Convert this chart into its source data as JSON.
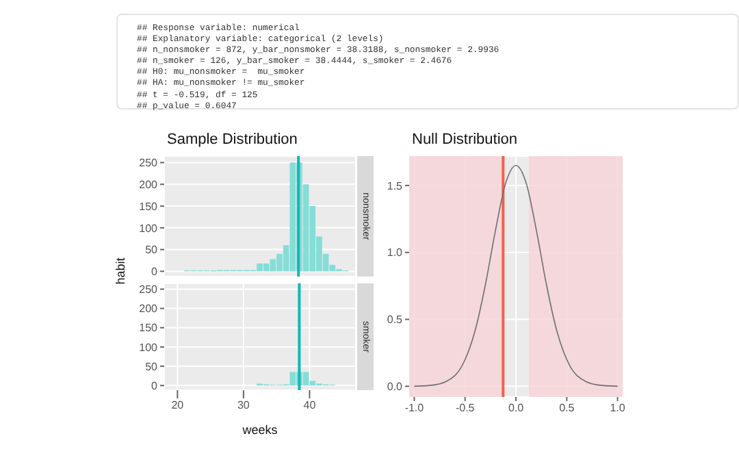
{
  "chart_data": [
    {
      "type": "other",
      "annotations": [
        "## Response variable: numerical",
        "## Explanatory variable: categorical (2 levels)",
        "## n_nonsmoker = 872, y_bar_nonsmoker = 38.3188, s_nonsmoker = 2.9936",
        "## n_smoker = 126, y_bar_smoker = 38.4444, s_smoker = 2.4676",
        "## H0: mu_nonsmoker =  mu_smoker",
        "## HA: mu_nonsmoker != mu_smoker",
        "## t = -0.519, df = 125",
        "## p_value = 0.6047"
      ]
    },
    {
      "type": "histogram",
      "title": "Sample Distribution",
      "ylabel": "habit",
      "annotations": [
        "nonsmoker"
      ],
      "color": "#85ddd7",
      "bins": [
        20,
        21,
        22,
        23,
        24,
        25,
        26,
        27,
        28,
        29,
        30,
        31,
        32,
        33,
        34,
        35,
        36,
        37,
        38,
        39,
        40,
        41,
        42,
        43,
        44,
        45,
        46
      ],
      "values": [
        null,
        2,
        2,
        2,
        2,
        2,
        3,
        3,
        3,
        3,
        3,
        3,
        18,
        18,
        28,
        40,
        60,
        250,
        250,
        200,
        150,
        80,
        40,
        15,
        5,
        2
      ],
      "xlim": [
        18,
        47
      ],
      "ylim": [
        -12,
        265
      ],
      "yticks": [
        0,
        50,
        100,
        150,
        200,
        250
      ],
      "grid": true,
      "tick_labels": "y",
      "ref_lines": [
        {
          "axis": "x",
          "value": 38.3188,
          "color": "#11b8b4"
        }
      ]
    },
    {
      "type": "histogram",
      "xlabel": "weeks",
      "annotations": [
        "smoker"
      ],
      "color": "#85ddd7",
      "bins": [
        20,
        21,
        22,
        23,
        24,
        25,
        26,
        27,
        28,
        29,
        30,
        31,
        32,
        33,
        34,
        35,
        36,
        37,
        38,
        39,
        40,
        41,
        42,
        43,
        44,
        45,
        46
      ],
      "values": [
        0,
        0,
        0,
        0,
        0,
        0,
        0,
        0,
        0,
        0,
        0,
        0,
        5,
        3,
        2,
        2,
        3,
        35,
        35,
        35,
        12,
        5,
        3,
        2,
        null,
        0
      ],
      "xlim": [
        18,
        47
      ],
      "ylim": [
        -12,
        265
      ],
      "xticks": [
        20,
        30,
        40
      ],
      "yticks": [
        0,
        50,
        100,
        150,
        200,
        250
      ],
      "grid": true,
      "ref_lines": [
        {
          "axis": "x",
          "value": 38.4444,
          "color": "#11b8b4"
        }
      ]
    },
    {
      "type": "line",
      "title": "Null Distribution",
      "x": [
        -1,
        -0.8,
        -0.6,
        -0.5,
        -0.4,
        -0.3,
        -0.2,
        -0.1,
        0,
        0.1,
        0.2,
        0.3,
        0.4,
        0.5,
        0.6,
        0.8,
        1
      ],
      "series": [
        {
          "color": "#6e6e6e",
          "values": [
            0,
            0.01,
            0.08,
            0.2,
            0.42,
            0.76,
            1.17,
            1.52,
            1.65,
            1.52,
            1.17,
            0.76,
            0.42,
            0.2,
            0.08,
            0.01,
            0
          ]
        }
      ],
      "xlim": [
        -1.05,
        1.05
      ],
      "ylim": [
        -0.08,
        1.72
      ],
      "xticks": [
        {
          "value": -1,
          "label": "-1.0"
        },
        -0.5,
        {
          "value": 0,
          "label": "0.0"
        },
        0.5,
        {
          "value": 1,
          "label": "1.0"
        }
      ],
      "yticks": [
        {
          "value": 0,
          "label": "0.0"
        },
        0.5,
        {
          "value": 1,
          "label": "1.0"
        },
        1.5
      ],
      "grid": true,
      "marker": "none",
      "ref_lines": [
        {
          "axis": "x",
          "value": -0.126,
          "color": "#f4604f"
        }
      ],
      "bands": [
        {
          "axis": "x",
          "from": -1.05,
          "to": -0.126,
          "color": "#f6d5d8"
        },
        {
          "axis": "x",
          "from": 0.126,
          "to": 1.05,
          "color": "#f6d5d8"
        }
      ]
    }
  ]
}
